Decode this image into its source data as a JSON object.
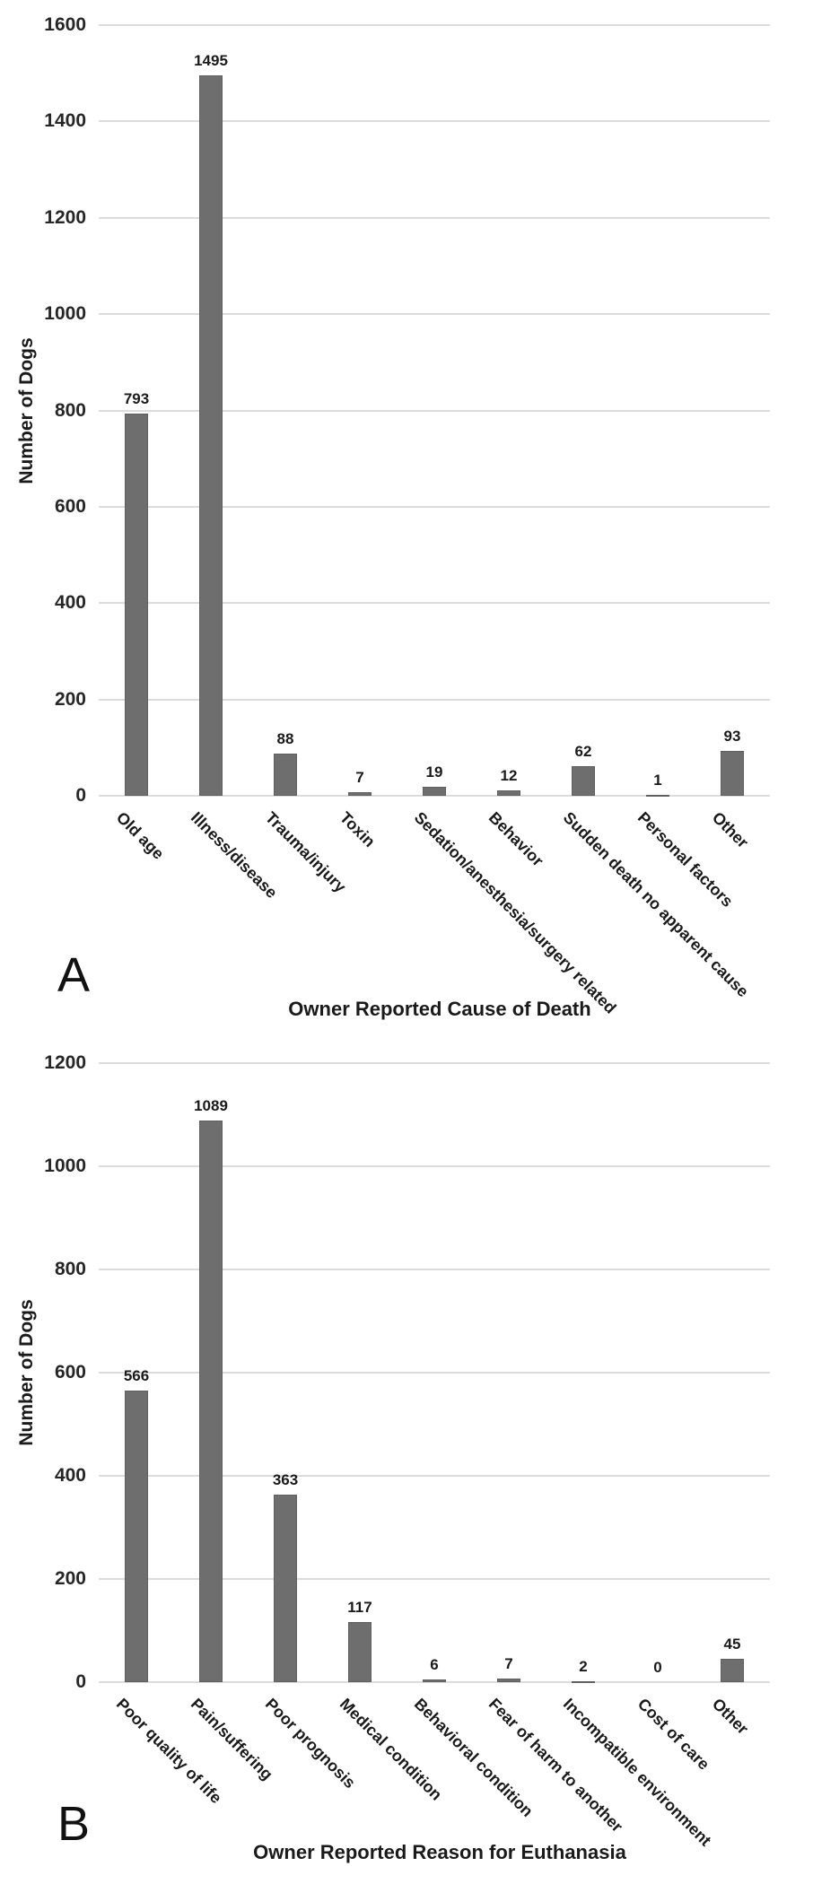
{
  "chart_data": [
    {
      "type": "bar",
      "panel_label": "A",
      "categories": [
        "Old age",
        "Illness/disease",
        "Trauma/injury",
        "Toxin",
        "Sedation/anesthesia/surgery related",
        "Behavior",
        "Sudden death no apparent cause",
        "Personal factors",
        "Other"
      ],
      "values": [
        793,
        1495,
        88,
        7,
        19,
        12,
        62,
        1,
        93
      ],
      "xlabel": "Owner Reported Cause of Death",
      "ylabel": "Number of Dogs",
      "ylim": [
        0,
        1600
      ],
      "ytick_step": 200,
      "ytick_labels": [
        "0",
        "200",
        "400",
        "600",
        "800",
        "1000",
        "1200",
        "1400",
        "1600"
      ],
      "grid": true,
      "legend": false,
      "bar_color": "#6e6e6e",
      "gridline_color": "#dcdcdc"
    },
    {
      "type": "bar",
      "panel_label": "B",
      "categories": [
        "Poor quality of life",
        "Pain/suffering",
        "Poor prognosis",
        "Medical condition",
        "Behavioral condition",
        "Fear of harm to another",
        "Incompatible environment",
        "Cost of care",
        "Other"
      ],
      "values": [
        566,
        1089,
        363,
        117,
        6,
        7,
        2,
        0,
        45
      ],
      "xlabel": "Owner Reported Reason for Euthanasia",
      "ylabel": "Number of Dogs",
      "ylim": [
        0,
        1200
      ],
      "ytick_step": 200,
      "ytick_labels": [
        "0",
        "200",
        "400",
        "600",
        "800",
        "1000",
        "1200"
      ],
      "grid": true,
      "legend": false,
      "bar_color": "#6e6e6e",
      "gridline_color": "#dcdcdc"
    }
  ]
}
